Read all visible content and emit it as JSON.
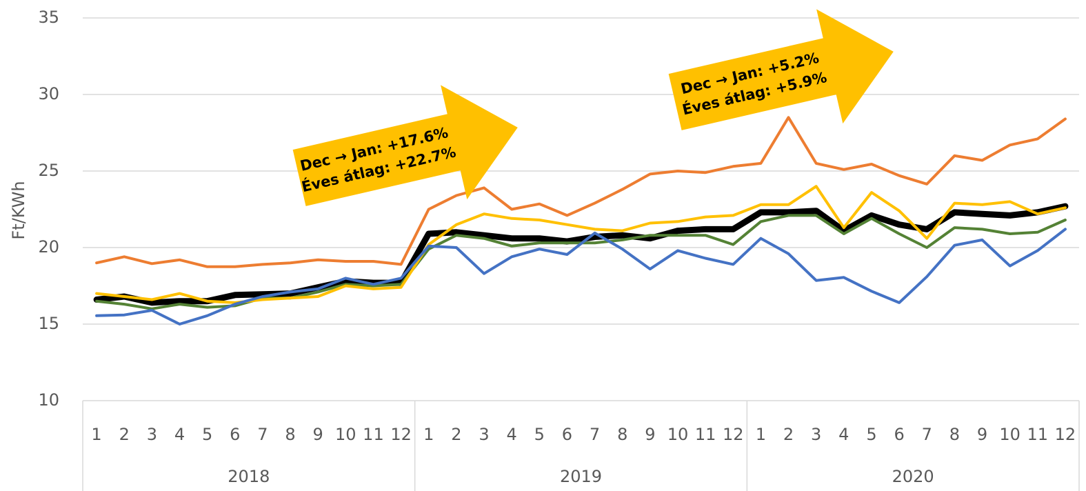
{
  "chart_data": {
    "type": "line",
    "y_label": "Ft/KWh",
    "categories": [
      "1",
      "2",
      "3",
      "4",
      "5",
      "6",
      "7",
      "8",
      "9",
      "10",
      "11",
      "12",
      "1",
      "2",
      "3",
      "4",
      "5",
      "6",
      "7",
      "8",
      "9",
      "10",
      "11",
      "12",
      "1",
      "2",
      "3",
      "4",
      "5",
      "6",
      "7",
      "8",
      "9",
      "10",
      "11",
      "12"
    ],
    "groups": [
      "2018",
      "2019",
      "2020"
    ],
    "ylim": [
      10,
      35
    ],
    "yticks": [
      10,
      15,
      20,
      25,
      30,
      35
    ],
    "grid": true,
    "series": [
      {
        "color": "#000000",
        "values": [
          16.6,
          16.8,
          16.4,
          16.5,
          16.5,
          16.9,
          16.95,
          17.0,
          17.4,
          17.8,
          17.7,
          17.7,
          20.9,
          21.0,
          20.8,
          20.6,
          20.6,
          20.4,
          20.7,
          20.8,
          20.6,
          21.1,
          21.2,
          21.2,
          22.3,
          22.3,
          22.4,
          21.1,
          22.1,
          21.5,
          21.2,
          22.3,
          22.2,
          22.1,
          22.3,
          22.7
        ]
      },
      {
        "color": "#548235",
        "values": [
          16.5,
          16.3,
          16.0,
          16.3,
          16.1,
          16.2,
          16.7,
          16.7,
          17.1,
          17.6,
          17.5,
          17.6,
          19.9,
          20.8,
          20.6,
          20.1,
          20.3,
          20.3,
          20.3,
          20.5,
          20.8,
          20.8,
          20.8,
          20.2,
          21.7,
          22.1,
          22.1,
          20.9,
          21.9,
          20.9,
          20.0,
          21.3,
          21.2,
          20.9,
          21.0,
          21.8
        ]
      },
      {
        "color": "#ffc000",
        "values": [
          17.0,
          16.8,
          16.6,
          17.0,
          16.5,
          16.4,
          16.6,
          16.7,
          16.8,
          17.5,
          17.3,
          17.4,
          20.2,
          21.5,
          22.2,
          21.9,
          21.8,
          21.5,
          21.2,
          21.1,
          21.6,
          21.7,
          22.0,
          22.1,
          22.8,
          22.8,
          24.0,
          21.3,
          23.6,
          22.4,
          20.6,
          22.9,
          22.8,
          23.0,
          22.2,
          22.6
        ]
      },
      {
        "color": "#4472c4",
        "values": [
          15.55,
          15.6,
          15.9,
          15.0,
          15.55,
          16.3,
          16.8,
          17.1,
          17.3,
          18.0,
          17.6,
          18.0,
          20.1,
          20.0,
          18.3,
          19.4,
          19.9,
          19.55,
          20.95,
          19.9,
          18.6,
          19.8,
          19.3,
          18.9,
          20.6,
          19.6,
          17.85,
          18.05,
          17.15,
          16.4,
          18.1,
          20.15,
          20.5,
          18.8,
          19.8,
          21.2
        ]
      },
      {
        "color": "#ed7d31",
        "values": [
          19.0,
          19.4,
          18.95,
          19.2,
          18.75,
          18.75,
          18.9,
          19.0,
          19.2,
          19.1,
          19.1,
          18.9,
          22.5,
          23.4,
          23.9,
          22.5,
          22.85,
          22.1,
          22.9,
          23.8,
          24.8,
          25.0,
          24.9,
          25.3,
          25.5,
          28.5,
          25.5,
          25.1,
          25.45,
          24.7,
          24.15,
          26.0,
          25.7,
          26.7,
          27.1,
          28.4
        ]
      }
    ],
    "annotations": [
      {
        "lines": [
          "Dec → Jan: +17.6%",
          "Éves átlag: +22.7%"
        ]
      },
      {
        "lines": [
          "Dec → Jan: +5.2%",
          "Éves átlag: +5.9%"
        ]
      }
    ]
  }
}
